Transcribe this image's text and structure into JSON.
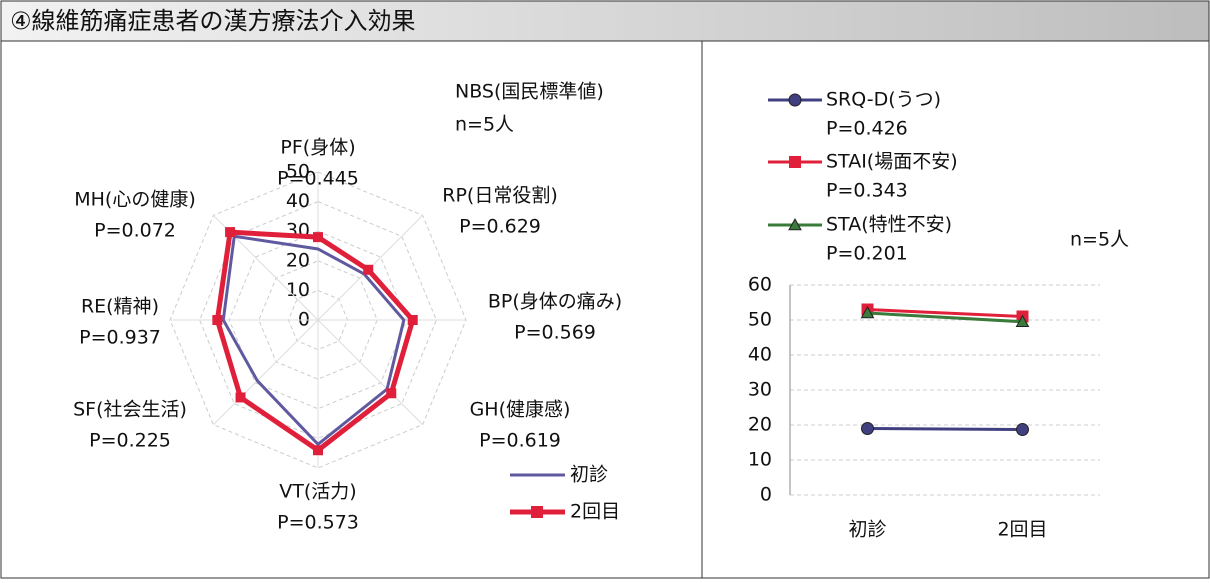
{
  "header": {
    "title": "④線維筋痛症患者の漢方療法介入効果"
  },
  "chart_data": [
    {
      "type": "radar",
      "annotations": [
        "NBS(国民標準値)",
        "n=5人"
      ],
      "categories": [
        "PF(身体)",
        "RP(日常役割)",
        "BP(身体の痛み)",
        "GH(健康感)",
        "VT(活力)",
        "SF(社会生活)",
        "RE(精神)",
        "MH(心の健康)"
      ],
      "p_labels": [
        "P=0.445",
        "P=0.629",
        "P=0.569",
        "P=0.619",
        "P=0.573",
        "P=0.225",
        "P=0.937",
        "P=0.072"
      ],
      "rlim": [
        0,
        50
      ],
      "rticks": [
        0,
        10,
        20,
        30,
        40,
        50
      ],
      "series": [
        {
          "name": "初診",
          "color": "#5f5aa0",
          "marker": "none",
          "values": [
            24,
            22,
            29,
            33,
            42,
            29,
            32,
            40
          ]
        },
        {
          "name": "2回目",
          "color": "#e0203a",
          "marker": "square",
          "values": [
            28,
            24,
            32,
            35,
            44,
            37,
            34,
            42
          ]
        }
      ]
    },
    {
      "type": "line",
      "annotations": [
        "n=5人"
      ],
      "categories": [
        "初診",
        "2回目"
      ],
      "ylim": [
        0,
        60
      ],
      "yticks": [
        0,
        10,
        20,
        30,
        40,
        50,
        60
      ],
      "grid": true,
      "series": [
        {
          "name": "SRQ-D(うつ)",
          "p_label": "P=0.426",
          "color": "#404080",
          "marker": "circle",
          "values": [
            19,
            18.7
          ]
        },
        {
          "name": "STAI(場面不安)",
          "p_label": "P=0.343",
          "color": "#e0203a",
          "marker": "square",
          "values": [
            53,
            51
          ]
        },
        {
          "name": "STA(特性不安)",
          "p_label": "P=0.201",
          "color": "#3a7a3a",
          "marker": "triangle",
          "values": [
            52,
            49.5
          ]
        }
      ]
    }
  ]
}
